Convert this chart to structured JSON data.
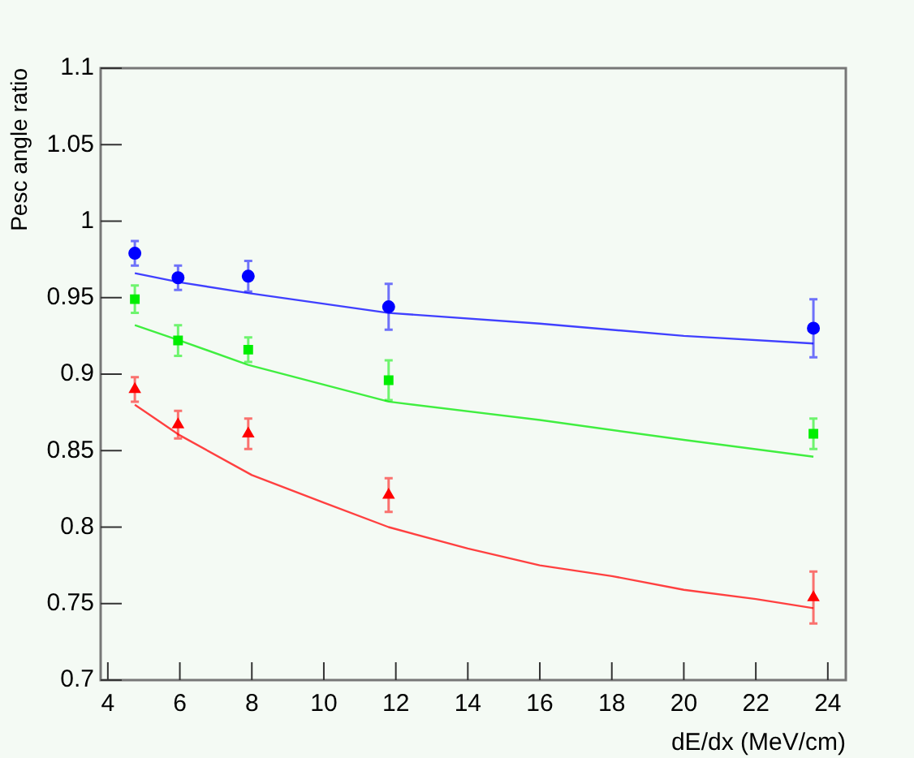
{
  "chart_data": {
    "type": "scatter",
    "xlabel": "dE/dx (MeV/cm)",
    "ylabel": "Pesc angle ratio",
    "xlim": [
      3.8,
      24.5
    ],
    "xticks": [
      4,
      6,
      8,
      10,
      12,
      14,
      16,
      18,
      20,
      22,
      24
    ],
    "ylim": [
      0.7,
      1.1
    ],
    "yticks": [
      0.7,
      0.75,
      0.8,
      0.85,
      0.9,
      0.95,
      1,
      1.05,
      1.1
    ],
    "grid": false,
    "legend": false,
    "series": [
      {
        "type": "scatter",
        "marker": "circle",
        "color": "#0000ff",
        "x": [
          4.75,
          5.95,
          7.9,
          11.8,
          23.6
        ],
        "values": [
          0.979,
          0.963,
          0.964,
          0.944,
          0.93
        ],
        "errors": [
          0.008,
          0.008,
          0.01,
          0.015,
          0.019
        ]
      },
      {
        "type": "scatter",
        "marker": "square",
        "color": "#00ee00",
        "x": [
          4.75,
          5.95,
          7.9,
          11.8,
          23.6
        ],
        "values": [
          0.949,
          0.922,
          0.916,
          0.896,
          0.861
        ],
        "errors": [
          0.009,
          0.01,
          0.008,
          0.013,
          0.01
        ]
      },
      {
        "type": "scatter",
        "marker": "triangle",
        "color": "#ff0000",
        "x": [
          4.75,
          5.95,
          7.9,
          11.8,
          23.6
        ],
        "values": [
          0.89,
          0.867,
          0.861,
          0.821,
          0.754
        ],
        "errors": [
          0.008,
          0.009,
          0.01,
          0.011,
          0.017
        ]
      },
      {
        "type": "line",
        "marker": "none",
        "color": "#4040ff",
        "x": [
          4.75,
          6,
          7.9,
          11.8,
          16,
          20,
          23.6
        ],
        "values": [
          0.966,
          0.96,
          0.953,
          0.94,
          0.933,
          0.925,
          0.92
        ]
      },
      {
        "type": "line",
        "marker": "none",
        "color": "#40ee40",
        "x": [
          4.75,
          6,
          7.9,
          11.8,
          16,
          20,
          23.6
        ],
        "values": [
          0.932,
          0.922,
          0.906,
          0.882,
          0.87,
          0.857,
          0.846
        ]
      },
      {
        "type": "line",
        "marker": "none",
        "color": "#ff4040",
        "x": [
          4.75,
          6,
          8,
          10,
          11.8,
          14,
          16,
          18,
          20,
          22,
          23.6
        ],
        "values": [
          0.88,
          0.86,
          0.834,
          0.816,
          0.8,
          0.786,
          0.775,
          0.768,
          0.759,
          0.753,
          0.747
        ]
      }
    ]
  }
}
